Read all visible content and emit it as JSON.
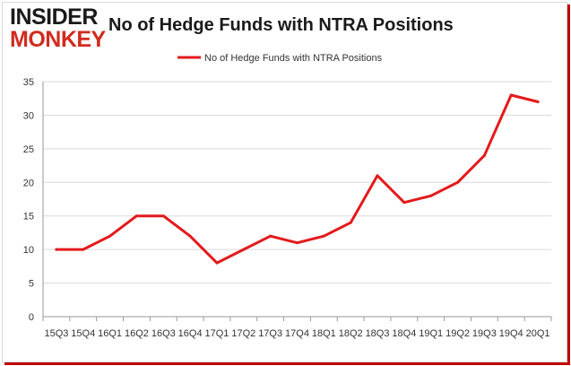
{
  "logo": {
    "line1": "INSIDER",
    "line2": "MONKEY"
  },
  "colors": {
    "series": "#e31a1c",
    "grid": "#d9d9d9",
    "axis": "#999999",
    "brand_red": "#d12b1f",
    "frame_shadow": "#c00000"
  },
  "chart_data": {
    "type": "line",
    "title": "No of Hedge Funds with NTRA Positions",
    "xlabel": "",
    "ylabel": "",
    "categories": [
      "15Q3",
      "15Q4",
      "16Q1",
      "16Q2",
      "16Q3",
      "16Q4",
      "17Q1",
      "17Q2",
      "17Q3",
      "17Q4",
      "18Q1",
      "18Q2",
      "18Q3",
      "18Q4",
      "19Q1",
      "19Q2",
      "19Q3",
      "19Q4",
      "20Q1"
    ],
    "series": [
      {
        "name": "No of Hedge Funds with NTRA  Positions",
        "values": [
          10,
          10,
          12,
          15,
          15,
          12,
          8,
          10,
          12,
          11,
          12,
          14,
          21,
          17,
          18,
          20,
          24,
          33,
          32
        ]
      }
    ],
    "ylim": [
      0,
      35
    ],
    "yticks": [
      0,
      5,
      10,
      15,
      20,
      25,
      30,
      35
    ],
    "grid": true,
    "legend_position": "top-center"
  }
}
